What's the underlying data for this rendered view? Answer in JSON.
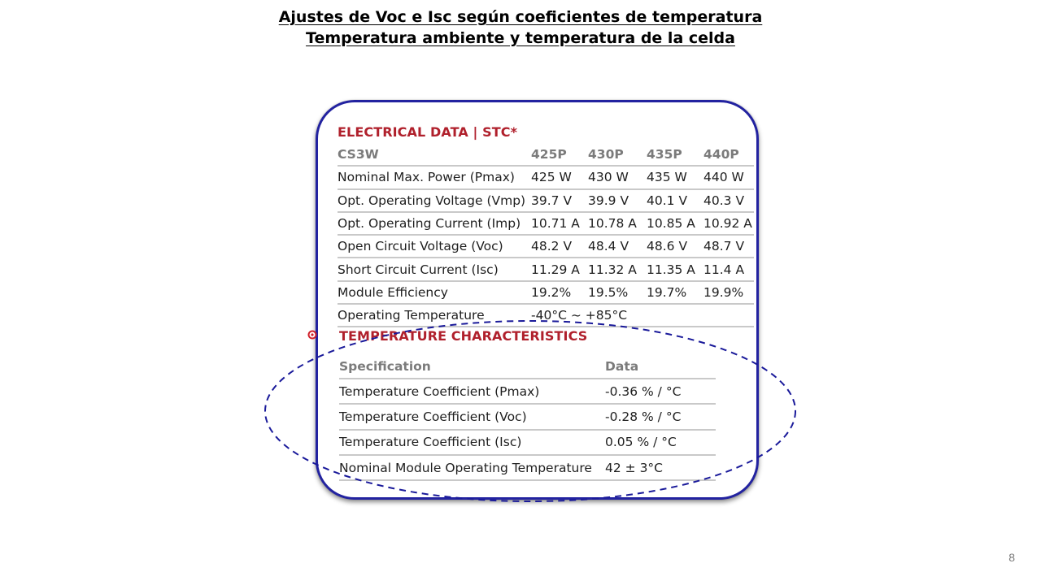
{
  "slide": {
    "title_line1": "Ajustes de Voc e Isc según coeficientes de temperatura",
    "title_line2": "Temperatura ambiente y temperatura de la celda",
    "page_number": "8"
  },
  "electrical": {
    "heading": "ELECTRICAL DATA | STC*",
    "columns": [
      "CS3W",
      "425P",
      "430P",
      "435P",
      "440P"
    ],
    "rows": [
      [
        "Nominal Max. Power (Pmax)",
        "425 W",
        "430 W",
        "435 W",
        "440 W"
      ],
      [
        "Opt. Operating Voltage (Vmp)",
        "39.7 V",
        "39.9 V",
        "40.1 V",
        "40.3 V"
      ],
      [
        "Opt. Operating Current (Imp)",
        "10.71 A",
        "10.78 A",
        "10.85 A",
        "10.92 A"
      ],
      [
        "Open Circuit Voltage (Voc)",
        "48.2 V",
        "48.4 V",
        "48.6 V",
        "48.7 V"
      ],
      [
        "Short Circuit Current (Isc)",
        "11.29 A",
        "11.32 A",
        "11.35 A",
        "11.4 A"
      ],
      [
        "Module Efficiency",
        "19.2%",
        "19.5%",
        "19.7%",
        "19.9%"
      ]
    ],
    "operating_temp_label": "Operating Temperature",
    "operating_temp_value": "-40°C ~ +85°C"
  },
  "temperature": {
    "heading": "TEMPERATURE CHARACTERISTICS",
    "columns": [
      "Specification",
      "Data"
    ],
    "rows": [
      [
        "Temperature Coefficient (Pmax)",
        "-0.36 % / °C"
      ],
      [
        "Temperature Coefficient (Voc)",
        "-0.28 % / °C"
      ],
      [
        "Temperature Coefficient (Isc)",
        "0.05 % / °C"
      ],
      [
        "Nominal Module Operating Temperature",
        "42 ± 3°C"
      ]
    ]
  },
  "colors": {
    "heading_red": "#b0202c",
    "frame_blue": "#2222a0",
    "ellipse_blue": "#1a1a9a",
    "pointer_red": "#d0202a"
  }
}
